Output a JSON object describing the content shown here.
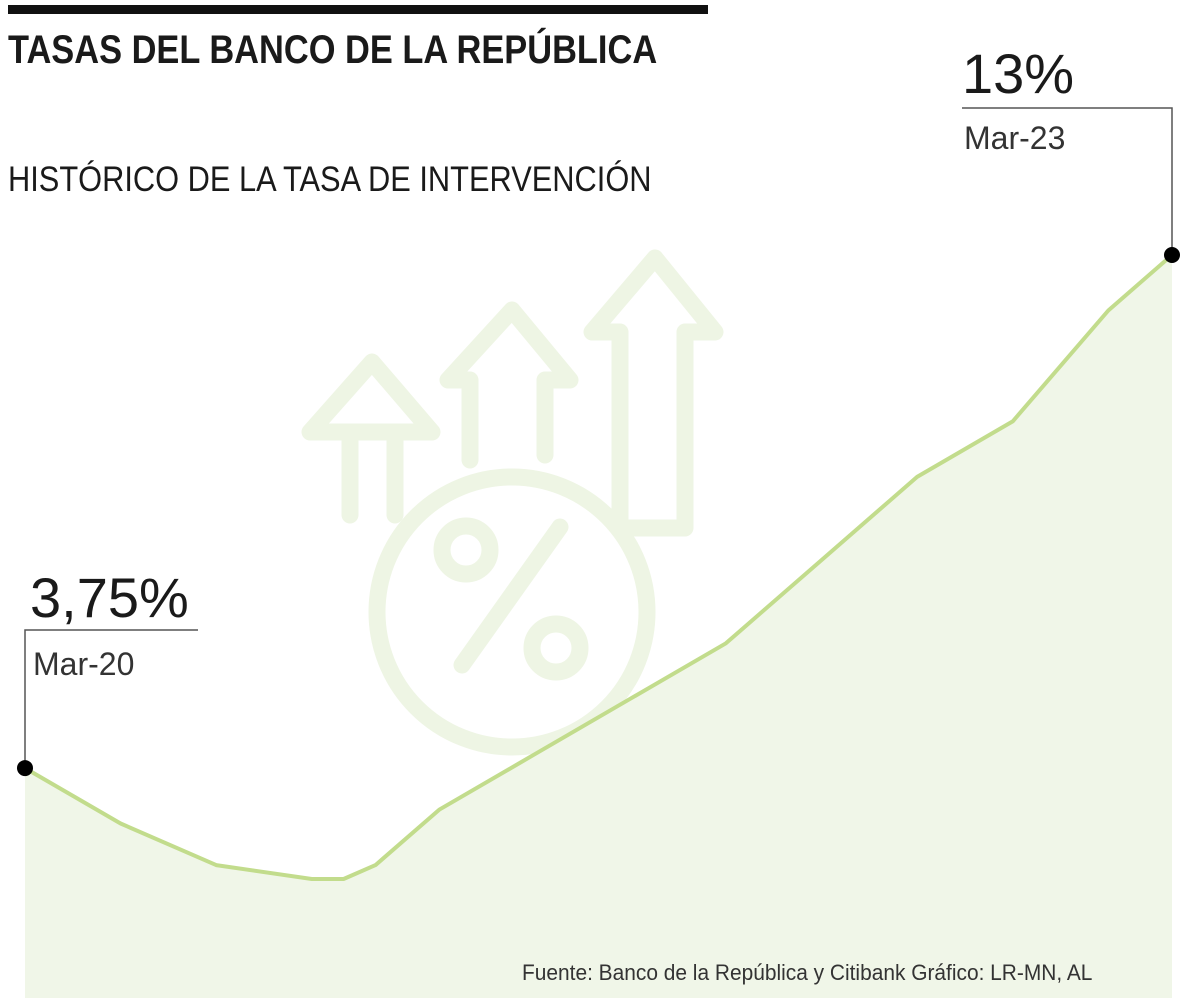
{
  "title": "TASAS DEL BANCO DE LA REPÚBLICA",
  "subtitle": "HISTÓRICO DE LA TASA DE INTERVENCIÓN",
  "source": "Fuente: Banco de la República y Citibank   Gráfico: LR-MN, AL",
  "colors": {
    "line": "#c2dc8c",
    "area": "#f0f6e8",
    "icon": "#eef5e4",
    "marker": "#000000"
  },
  "icon_name": "rising-arrows-percent-icon",
  "chart_data": {
    "type": "area",
    "title": "HISTÓRICO DE LA TASA DE INTERVENCIÓN",
    "xlabel": "",
    "ylabel": "",
    "ylim": [
      0,
      14
    ],
    "grid": false,
    "legend": "none",
    "series": [
      {
        "values": [
          3.75,
          2.75,
          2.0,
          1.75,
          1.75,
          2.0,
          3.0,
          4.0,
          5.0,
          6.0,
          7.5,
          9.0,
          10.0,
          12.0,
          13.0
        ],
        "x": [
          0,
          3,
          6,
          9,
          10,
          11,
          13,
          16,
          19,
          22,
          25,
          28,
          31,
          34,
          36
        ]
      }
    ],
    "annotations": [
      {
        "value_label": "3,75%",
        "date_label": "Mar-20",
        "point": "first"
      },
      {
        "value_label": "13%",
        "date_label": "Mar-23",
        "point": "last"
      }
    ]
  }
}
